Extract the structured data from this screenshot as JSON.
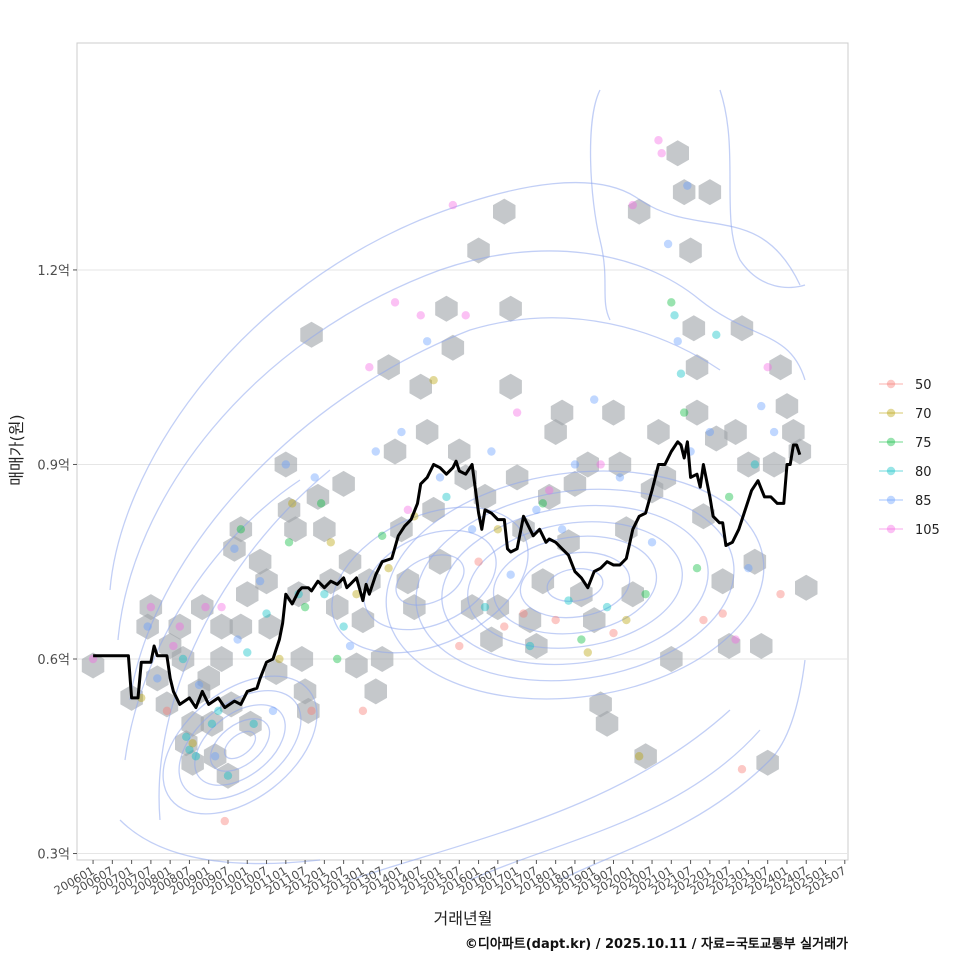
{
  "chart_data": {
    "type": "scatter",
    "title": "",
    "xlabel": "거래년월",
    "ylabel": "매매가(원)",
    "caption": "©디아파트(dapt.kr) / 2025.10.11 / 자료=국토교통부 실거래가",
    "x_ticks": [
      "200601",
      "200607",
      "200701",
      "200707",
      "200801",
      "200807",
      "200901",
      "200907",
      "201001",
      "201007",
      "201101",
      "201107",
      "201201",
      "201207",
      "201301",
      "201307",
      "201401",
      "201407",
      "201501",
      "201507",
      "201601",
      "201607",
      "201701",
      "201707",
      "201801",
      "201807",
      "201901",
      "201907",
      "202001",
      "202007",
      "202101",
      "202107",
      "202201",
      "202207",
      "202301",
      "202307",
      "202401",
      "202407",
      "202501",
      "202507"
    ],
    "y_ticks": [
      {
        "value": 0.3,
        "label": "0.3억"
      },
      {
        "value": 0.6,
        "label": "0.6억"
      },
      {
        "value": 0.9,
        "label": "0.9억"
      },
      {
        "value": 1.2,
        "label": "1.2억"
      }
    ],
    "ylim": [
      0.29,
      1.55
    ],
    "xlim_months": [
      -5,
      235
    ],
    "legend": {
      "placement": "right",
      "entries": [
        {
          "label": "50",
          "color": "#F8766D"
        },
        {
          "label": "70",
          "color": "#B79F00"
        },
        {
          "label": "75",
          "color": "#00BA38"
        },
        {
          "label": "80",
          "color": "#00BFC4"
        },
        {
          "label": "85",
          "color": "#619CFF"
        },
        {
          "label": "105",
          "color": "#F564E3"
        }
      ]
    },
    "trend_line": {
      "name": "moving average",
      "color": "#000000",
      "points": [
        [
          0,
          0.605
        ],
        [
          5,
          0.605
        ],
        [
          9,
          0.605
        ],
        [
          11,
          0.605
        ],
        [
          12,
          0.54
        ],
        [
          14,
          0.54
        ],
        [
          15,
          0.595
        ],
        [
          17,
          0.595
        ],
        [
          18,
          0.595
        ],
        [
          19,
          0.62
        ],
        [
          20,
          0.605
        ],
        [
          23,
          0.605
        ],
        [
          24,
          0.57
        ],
        [
          25,
          0.55
        ],
        [
          27,
          0.53
        ],
        [
          30,
          0.54
        ],
        [
          32,
          0.525
        ],
        [
          34,
          0.55
        ],
        [
          36,
          0.53
        ],
        [
          39,
          0.54
        ],
        [
          41,
          0.525
        ],
        [
          44,
          0.535
        ],
        [
          46,
          0.53
        ],
        [
          48,
          0.55
        ],
        [
          51,
          0.555
        ],
        [
          52,
          0.57
        ],
        [
          54,
          0.595
        ],
        [
          56,
          0.6
        ],
        [
          58,
          0.63
        ],
        [
          59,
          0.655
        ],
        [
          60,
          0.7
        ],
        [
          62,
          0.685
        ],
        [
          64,
          0.705
        ],
        [
          65,
          0.71
        ],
        [
          67,
          0.71
        ],
        [
          68,
          0.705
        ],
        [
          70,
          0.72
        ],
        [
          72,
          0.71
        ],
        [
          74,
          0.72
        ],
        [
          76,
          0.715
        ],
        [
          78,
          0.725
        ],
        [
          79,
          0.71
        ],
        [
          80,
          0.715
        ],
        [
          82,
          0.725
        ],
        [
          84,
          0.69
        ],
        [
          85,
          0.715
        ],
        [
          86,
          0.7
        ],
        [
          88,
          0.73
        ],
        [
          90,
          0.75
        ],
        [
          93,
          0.755
        ],
        [
          95,
          0.79
        ],
        [
          97,
          0.805
        ],
        [
          99,
          0.815
        ],
        [
          101,
          0.84
        ],
        [
          102,
          0.87
        ],
        [
          104,
          0.88
        ],
        [
          106,
          0.9
        ],
        [
          108,
          0.895
        ],
        [
          110,
          0.885
        ],
        [
          112,
          0.895
        ],
        [
          113,
          0.905
        ],
        [
          114,
          0.89
        ],
        [
          116,
          0.885
        ],
        [
          118,
          0.9
        ],
        [
          120,
          0.825
        ],
        [
          121,
          0.8
        ],
        [
          122,
          0.83
        ],
        [
          124,
          0.825
        ],
        [
          126,
          0.815
        ],
        [
          128,
          0.815
        ],
        [
          129,
          0.77
        ],
        [
          130,
          0.765
        ],
        [
          132,
          0.77
        ],
        [
          134,
          0.82
        ],
        [
          135,
          0.81
        ],
        [
          137,
          0.79
        ],
        [
          139,
          0.8
        ],
        [
          141,
          0.78
        ],
        [
          142,
          0.785
        ],
        [
          144,
          0.78
        ],
        [
          146,
          0.77
        ],
        [
          148,
          0.76
        ],
        [
          150,
          0.735
        ],
        [
          152,
          0.725
        ],
        [
          154,
          0.71
        ],
        [
          156,
          0.735
        ],
        [
          158,
          0.74
        ],
        [
          160,
          0.75
        ],
        [
          162,
          0.745
        ],
        [
          164,
          0.745
        ],
        [
          166,
          0.755
        ],
        [
          168,
          0.8
        ],
        [
          170,
          0.82
        ],
        [
          172,
          0.825
        ],
        [
          174,
          0.86
        ],
        [
          176,
          0.9
        ],
        [
          178,
          0.9
        ],
        [
          180,
          0.92
        ],
        [
          182,
          0.935
        ],
        [
          183,
          0.93
        ],
        [
          184,
          0.91
        ],
        [
          185,
          0.935
        ],
        [
          186,
          0.88
        ],
        [
          188,
          0.885
        ],
        [
          189,
          0.865
        ],
        [
          190,
          0.9
        ],
        [
          192,
          0.85
        ],
        [
          193,
          0.82
        ],
        [
          195,
          0.81
        ],
        [
          196,
          0.81
        ],
        [
          197,
          0.775
        ],
        [
          199,
          0.78
        ],
        [
          201,
          0.8
        ],
        [
          203,
          0.83
        ],
        [
          205,
          0.86
        ],
        [
          207,
          0.875
        ],
        [
          209,
          0.85
        ],
        [
          211,
          0.85
        ],
        [
          213,
          0.84
        ],
        [
          215,
          0.84
        ],
        [
          216,
          0.9
        ],
        [
          217,
          0.9
        ],
        [
          218,
          0.93
        ],
        [
          219,
          0.93
        ],
        [
          220,
          0.915
        ]
      ]
    },
    "hexbin_counts": [
      [
        0,
        0.59
      ],
      [
        12,
        0.54
      ],
      [
        17,
        0.65
      ],
      [
        18,
        0.68
      ],
      [
        20,
        0.57
      ],
      [
        23,
        0.53
      ],
      [
        24,
        0.62
      ],
      [
        27,
        0.65
      ],
      [
        28,
        0.6
      ],
      [
        29,
        0.47
      ],
      [
        31,
        0.5
      ],
      [
        31,
        0.44
      ],
      [
        33,
        0.55
      ],
      [
        34,
        0.68
      ],
      [
        36,
        0.57
      ],
      [
        37,
        0.5
      ],
      [
        38,
        0.45
      ],
      [
        40,
        0.6
      ],
      [
        40,
        0.65
      ],
      [
        42,
        0.42
      ],
      [
        43,
        0.53
      ],
      [
        44,
        0.77
      ],
      [
        46,
        0.8
      ],
      [
        46,
        0.65
      ],
      [
        48,
        0.7
      ],
      [
        49,
        0.5
      ],
      [
        52,
        0.75
      ],
      [
        54,
        0.72
      ],
      [
        55,
        0.65
      ],
      [
        57,
        0.58
      ],
      [
        60,
        0.9
      ],
      [
        61,
        0.83
      ],
      [
        63,
        0.8
      ],
      [
        64,
        0.7
      ],
      [
        65,
        0.6
      ],
      [
        66,
        0.55
      ],
      [
        67,
        0.52
      ],
      [
        68,
        1.1
      ],
      [
        70,
        0.85
      ],
      [
        72,
        0.8
      ],
      [
        74,
        0.72
      ],
      [
        76,
        0.68
      ],
      [
        78,
        0.87
      ],
      [
        80,
        0.75
      ],
      [
        82,
        0.59
      ],
      [
        84,
        0.66
      ],
      [
        86,
        0.72
      ],
      [
        88,
        0.55
      ],
      [
        90,
        0.6
      ],
      [
        92,
        1.05
      ],
      [
        94,
        0.92
      ],
      [
        96,
        0.8
      ],
      [
        98,
        0.72
      ],
      [
        100,
        0.68
      ],
      [
        102,
        1.02
      ],
      [
        104,
        0.95
      ],
      [
        106,
        0.83
      ],
      [
        108,
        0.75
      ],
      [
        110,
        1.14
      ],
      [
        112,
        1.08
      ],
      [
        114,
        0.92
      ],
      [
        116,
        0.88
      ],
      [
        118,
        0.68
      ],
      [
        120,
        1.23
      ],
      [
        122,
        0.85
      ],
      [
        124,
        0.63
      ],
      [
        126,
        0.68
      ],
      [
        128,
        1.29
      ],
      [
        130,
        1.14
      ],
      [
        130,
        1.02
      ],
      [
        132,
        0.88
      ],
      [
        134,
        0.8
      ],
      [
        136,
        0.66
      ],
      [
        138,
        0.62
      ],
      [
        140,
        0.72
      ],
      [
        142,
        0.85
      ],
      [
        144,
        0.95
      ],
      [
        146,
        0.98
      ],
      [
        148,
        0.78
      ],
      [
        150,
        0.87
      ],
      [
        152,
        0.7
      ],
      [
        154,
        0.9
      ],
      [
        156,
        0.66
      ],
      [
        158,
        0.53
      ],
      [
        160,
        0.5
      ],
      [
        162,
        0.98
      ],
      [
        164,
        0.9
      ],
      [
        166,
        0.8
      ],
      [
        168,
        0.7
      ],
      [
        170,
        1.29
      ],
      [
        172,
        0.45
      ],
      [
        174,
        0.86
      ],
      [
        176,
        0.95
      ],
      [
        178,
        0.88
      ],
      [
        180,
        0.6
      ],
      [
        182,
        1.38
      ],
      [
        184,
        1.32
      ],
      [
        186,
        1.23
      ],
      [
        187,
        1.11
      ],
      [
        188,
        1.05
      ],
      [
        188,
        0.98
      ],
      [
        190,
        0.82
      ],
      [
        192,
        1.32
      ],
      [
        194,
        0.94
      ],
      [
        196,
        0.72
      ],
      [
        198,
        0.62
      ],
      [
        200,
        0.95
      ],
      [
        202,
        1.11
      ],
      [
        204,
        0.9
      ],
      [
        206,
        0.75
      ],
      [
        208,
        0.62
      ],
      [
        210,
        0.44
      ],
      [
        212,
        0.9
      ],
      [
        214,
        1.05
      ],
      [
        216,
        0.99
      ],
      [
        218,
        0.95
      ],
      [
        220,
        0.92
      ],
      [
        222,
        0.71
      ]
    ],
    "points": [
      [
        "105",
        0,
        0.6
      ],
      [
        "70",
        15,
        0.54
      ],
      [
        "85",
        17,
        0.65
      ],
      [
        "105",
        18,
        0.68
      ],
      [
        "85",
        20,
        0.57
      ],
      [
        "50",
        23,
        0.52
      ],
      [
        "105",
        25,
        0.62
      ],
      [
        "105",
        27,
        0.65
      ],
      [
        "80",
        28,
        0.6
      ],
      [
        "80",
        29,
        0.48
      ],
      [
        "80",
        30,
        0.46
      ],
      [
        "70",
        31,
        0.47
      ],
      [
        "80",
        32,
        0.45
      ],
      [
        "85",
        33,
        0.56
      ],
      [
        "105",
        35,
        0.68
      ],
      [
        "80",
        37,
        0.5
      ],
      [
        "85",
        38,
        0.45
      ],
      [
        "80",
        39,
        0.52
      ],
      [
        "105",
        40,
        0.68
      ],
      [
        "50",
        41,
        0.35
      ],
      [
        "80",
        42,
        0.42
      ],
      [
        "85",
        44,
        0.77
      ],
      [
        "85",
        45,
        0.63
      ],
      [
        "75",
        46,
        0.8
      ],
      [
        "80",
        48,
        0.61
      ],
      [
        "80",
        50,
        0.5
      ],
      [
        "85",
        52,
        0.72
      ],
      [
        "80",
        54,
        0.67
      ],
      [
        "85",
        56,
        0.52
      ],
      [
        "70",
        58,
        0.6
      ],
      [
        "85",
        60,
        0.9
      ],
      [
        "75",
        61,
        0.78
      ],
      [
        "70",
        62,
        0.84
      ],
      [
        "80",
        64,
        0.7
      ],
      [
        "75",
        66,
        0.68
      ],
      [
        "50",
        68,
        0.52
      ],
      [
        "85",
        69,
        0.88
      ],
      [
        "75",
        71,
        0.84
      ],
      [
        "80",
        72,
        0.7
      ],
      [
        "70",
        74,
        0.78
      ],
      [
        "75",
        76,
        0.6
      ],
      [
        "80",
        78,
        0.65
      ],
      [
        "85",
        80,
        0.62
      ],
      [
        "70",
        82,
        0.7
      ],
      [
        "50",
        84,
        0.52
      ],
      [
        "105",
        86,
        1.05
      ],
      [
        "85",
        88,
        0.92
      ],
      [
        "75",
        90,
        0.79
      ],
      [
        "70",
        92,
        0.74
      ],
      [
        "105",
        94,
        1.15
      ],
      [
        "85",
        96,
        0.95
      ],
      [
        "105",
        98,
        0.83
      ],
      [
        "70",
        100,
        0.82
      ],
      [
        "105",
        102,
        1.13
      ],
      [
        "85",
        104,
        1.09
      ],
      [
        "70",
        106,
        1.03
      ],
      [
        "85",
        108,
        0.88
      ],
      [
        "80",
        110,
        0.85
      ],
      [
        "105",
        112,
        1.3
      ],
      [
        "50",
        114,
        0.62
      ],
      [
        "105",
        116,
        1.13
      ],
      [
        "85",
        118,
        0.8
      ],
      [
        "50",
        120,
        0.75
      ],
      [
        "80",
        122,
        0.68
      ],
      [
        "85",
        124,
        0.92
      ],
      [
        "70",
        126,
        0.8
      ],
      [
        "50",
        128,
        0.65
      ],
      [
        "85",
        130,
        0.73
      ],
      [
        "105",
        132,
        0.98
      ],
      [
        "50",
        134,
        0.67
      ],
      [
        "80",
        136,
        0.62
      ],
      [
        "85",
        138,
        0.83
      ],
      [
        "75",
        140,
        0.84
      ],
      [
        "105",
        142,
        0.86
      ],
      [
        "50",
        144,
        0.66
      ],
      [
        "85",
        146,
        0.8
      ],
      [
        "80",
        148,
        0.69
      ],
      [
        "85",
        150,
        0.9
      ],
      [
        "75",
        152,
        0.63
      ],
      [
        "70",
        154,
        0.61
      ],
      [
        "85",
        156,
        1.0
      ],
      [
        "105",
        158,
        0.9
      ],
      [
        "80",
        160,
        0.68
      ],
      [
        "50",
        162,
        0.64
      ],
      [
        "85",
        164,
        0.88
      ],
      [
        "70",
        166,
        0.66
      ],
      [
        "105",
        168,
        1.3
      ],
      [
        "70",
        170,
        0.45
      ],
      [
        "75",
        172,
        0.7
      ],
      [
        "85",
        174,
        0.78
      ],
      [
        "105",
        176,
        1.4
      ],
      [
        "105",
        177,
        1.38
      ],
      [
        "85",
        179,
        1.24
      ],
      [
        "75",
        180,
        1.15
      ],
      [
        "80",
        181,
        1.13
      ],
      [
        "85",
        182,
        1.09
      ],
      [
        "80",
        183,
        1.04
      ],
      [
        "75",
        184,
        0.98
      ],
      [
        "85",
        185,
        1.33
      ],
      [
        "85",
        186,
        0.92
      ],
      [
        "75",
        188,
        0.74
      ],
      [
        "50",
        190,
        0.66
      ],
      [
        "85",
        192,
        0.95
      ],
      [
        "80",
        194,
        1.1
      ],
      [
        "50",
        196,
        0.67
      ],
      [
        "75",
        198,
        0.85
      ],
      [
        "105",
        200,
        0.63
      ],
      [
        "50",
        202,
        0.43
      ],
      [
        "85",
        204,
        0.74
      ],
      [
        "80",
        206,
        0.9
      ],
      [
        "85",
        208,
        0.99
      ],
      [
        "105",
        210,
        1.05
      ],
      [
        "85",
        212,
        0.95
      ],
      [
        "50",
        214,
        0.7
      ]
    ]
  }
}
